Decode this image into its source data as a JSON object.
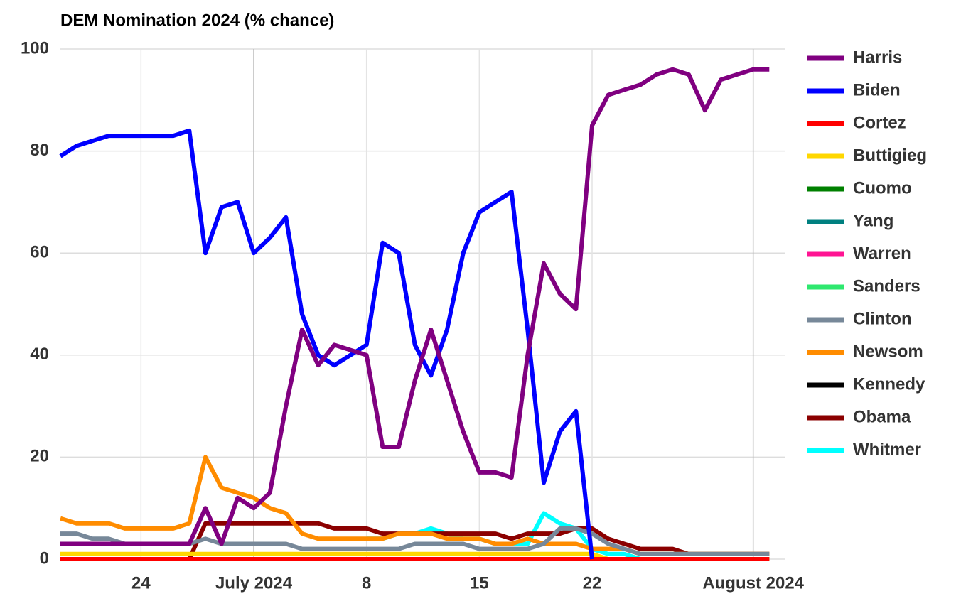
{
  "chart_data": {
    "type": "line",
    "title": "DEM Nomination 2024 (% chance)",
    "x": [
      "2024-06-19",
      "2024-06-20",
      "2024-06-21",
      "2024-06-22",
      "2024-06-23",
      "2024-06-24",
      "2024-06-25",
      "2024-06-26",
      "2024-06-27",
      "2024-06-28",
      "2024-06-29",
      "2024-06-30",
      "2024-07-01",
      "2024-07-02",
      "2024-07-03",
      "2024-07-04",
      "2024-07-05",
      "2024-07-06",
      "2024-07-07",
      "2024-07-08",
      "2024-07-09",
      "2024-07-10",
      "2024-07-11",
      "2024-07-12",
      "2024-07-13",
      "2024-07-14",
      "2024-07-15",
      "2024-07-16",
      "2024-07-17",
      "2024-07-18",
      "2024-07-19",
      "2024-07-20",
      "2024-07-21",
      "2024-07-22",
      "2024-07-23",
      "2024-07-24",
      "2024-07-25",
      "2024-07-26",
      "2024-07-27",
      "2024-07-28",
      "2024-07-29",
      "2024-07-30",
      "2024-07-31",
      "2024-08-01",
      "2024-08-02"
    ],
    "xlim": [
      "2024-06-19",
      "2024-08-03"
    ],
    "xticks": [
      {
        "value": "2024-06-24",
        "label": "24"
      },
      {
        "value": "2024-07-01",
        "label": "July 2024"
      },
      {
        "value": "2024-07-08",
        "label": "8"
      },
      {
        "value": "2024-07-15",
        "label": "15"
      },
      {
        "value": "2024-07-22",
        "label": "22"
      },
      {
        "value": "2024-08-01",
        "label": "August 2024"
      }
    ],
    "ylim": [
      0,
      100
    ],
    "yticks": [
      0,
      20,
      40,
      60,
      80,
      100
    ],
    "grid": true,
    "legend": "right",
    "series": [
      {
        "name": "Harris",
        "color": "#800080",
        "values": [
          3,
          3,
          3,
          3,
          3,
          3,
          3,
          3,
          3,
          10,
          3,
          12,
          10,
          13,
          30,
          45,
          38,
          42,
          41,
          40,
          22,
          22,
          35,
          45,
          35,
          25,
          17,
          17,
          16,
          40,
          58,
          52,
          49,
          85,
          91,
          92,
          93,
          95,
          96,
          95,
          88,
          94,
          95,
          96,
          96
        ]
      },
      {
        "name": "Biden",
        "color": "#0000ff",
        "values": [
          79,
          81,
          82,
          83,
          83,
          83,
          83,
          83,
          84,
          60,
          69,
          70,
          60,
          63,
          67,
          48,
          40,
          38,
          40,
          42,
          62,
          60,
          42,
          36,
          45,
          60,
          68,
          70,
          72,
          45,
          15,
          25,
          29,
          0,
          null,
          null,
          null,
          null,
          null,
          null,
          null,
          null,
          null,
          null,
          null
        ]
      },
      {
        "name": "Cortez",
        "color": "#ff0000",
        "values": [
          0,
          0,
          0,
          0,
          0,
          0,
          0,
          0,
          0,
          0,
          0,
          0,
          0,
          0,
          0,
          0,
          0,
          0,
          0,
          0,
          0,
          0,
          0,
          0,
          0,
          0,
          0,
          0,
          0,
          0,
          0,
          0,
          0,
          0,
          0,
          0,
          0,
          0,
          0,
          0,
          0,
          0,
          0,
          0,
          0
        ]
      },
      {
        "name": "Buttigieg",
        "color": "#ffd700",
        "values": [
          1,
          1,
          1,
          1,
          1,
          1,
          1,
          1,
          1,
          1,
          1,
          1,
          1,
          1,
          1,
          1,
          1,
          1,
          1,
          1,
          1,
          1,
          1,
          1,
          1,
          1,
          1,
          1,
          1,
          1,
          1,
          1,
          1,
          1,
          0,
          0,
          0,
          0,
          0,
          0,
          0,
          0,
          0,
          0,
          0
        ]
      },
      {
        "name": "Cuomo",
        "color": "#008000",
        "values": [
          0,
          0,
          0,
          0,
          0,
          0,
          0,
          0,
          0,
          0,
          0,
          0,
          0,
          0,
          0,
          0,
          0,
          0,
          0,
          0,
          0,
          0,
          0,
          0,
          0,
          0,
          0,
          0,
          0,
          0,
          0,
          0,
          0,
          0,
          0,
          0,
          0,
          0,
          0,
          0,
          0,
          0,
          0,
          0,
          0
        ]
      },
      {
        "name": "Yang",
        "color": "#008080",
        "values": [
          0,
          0,
          0,
          0,
          0,
          0,
          0,
          0,
          0,
          0,
          0,
          0,
          0,
          0,
          0,
          0,
          0,
          0,
          0,
          0,
          0,
          0,
          0,
          0,
          0,
          0,
          0,
          0,
          0,
          0,
          0,
          0,
          0,
          0,
          0,
          0,
          0,
          0,
          0,
          0,
          0,
          0,
          0,
          0,
          0
        ]
      },
      {
        "name": "Warren",
        "color": "#ff1493",
        "values": [
          0,
          0,
          0,
          0,
          0,
          0,
          0,
          0,
          0,
          0,
          0,
          0,
          0,
          0,
          0,
          0,
          0,
          0,
          0,
          0,
          0,
          0,
          0,
          0,
          0,
          0,
          0,
          0,
          0,
          0,
          0,
          0,
          0,
          0,
          0,
          0,
          0,
          0,
          0,
          0,
          0,
          0,
          0,
          0,
          0
        ]
      },
      {
        "name": "Sanders",
        "color": "#2ee86f",
        "values": [
          0,
          0,
          0,
          0,
          0,
          0,
          0,
          0,
          0,
          0,
          0,
          0,
          0,
          0,
          0,
          0,
          0,
          0,
          0,
          0,
          0,
          0,
          0,
          0,
          0,
          0,
          0,
          0,
          0,
          0,
          0,
          0,
          0,
          0,
          0,
          0,
          0,
          0,
          0,
          0,
          0,
          0,
          0,
          0,
          0
        ]
      },
      {
        "name": "Clinton",
        "color": "#778899",
        "values": [
          5,
          5,
          4,
          4,
          3,
          3,
          3,
          3,
          3,
          4,
          3,
          3,
          3,
          3,
          3,
          2,
          2,
          2,
          2,
          2,
          2,
          2,
          3,
          3,
          3,
          3,
          2,
          2,
          2,
          2,
          3,
          6,
          6,
          5,
          3,
          2,
          1,
          1,
          1,
          1,
          1,
          1,
          1,
          1,
          1
        ]
      },
      {
        "name": "Newsom",
        "color": "#ff8c00",
        "values": [
          8,
          7,
          7,
          7,
          6,
          6,
          6,
          6,
          7,
          20,
          14,
          13,
          12,
          10,
          9,
          5,
          4,
          4,
          4,
          4,
          4,
          5,
          5,
          5,
          4,
          4,
          4,
          3,
          3,
          4,
          3,
          3,
          3,
          2,
          2,
          2,
          1,
          1,
          1,
          1,
          1,
          1,
          1,
          1,
          1
        ]
      },
      {
        "name": "Kennedy",
        "color": "#000000",
        "values": [
          0,
          0,
          0,
          0,
          0,
          0,
          0,
          0,
          0,
          0,
          0,
          0,
          0,
          0,
          0,
          0,
          0,
          0,
          0,
          0,
          0,
          0,
          0,
          0,
          0,
          0,
          0,
          0,
          0,
          0,
          0,
          0,
          0,
          0,
          0,
          0,
          0,
          0,
          0,
          0,
          0,
          0,
          0,
          0,
          0
        ]
      },
      {
        "name": "Obama",
        "color": "#8b0000",
        "values": [
          0,
          0,
          0,
          0,
          0,
          0,
          0,
          0,
          0,
          7,
          7,
          7,
          7,
          7,
          7,
          7,
          7,
          6,
          6,
          6,
          5,
          5,
          5,
          5,
          5,
          5,
          5,
          5,
          4,
          5,
          5,
          5,
          6,
          6,
          4,
          3,
          2,
          2,
          2,
          1,
          1,
          1,
          1,
          1,
          1
        ]
      },
      {
        "name": "Whitmer",
        "color": "#00ffff",
        "values": [
          null,
          null,
          null,
          null,
          null,
          null,
          null,
          null,
          null,
          null,
          null,
          null,
          null,
          null,
          null,
          null,
          null,
          null,
          null,
          4,
          4,
          5,
          5,
          6,
          5,
          4,
          4,
          3,
          3,
          3,
          9,
          7,
          6,
          2,
          1,
          1,
          0,
          0,
          0,
          0,
          0,
          0,
          0,
          0,
          0
        ]
      }
    ]
  }
}
